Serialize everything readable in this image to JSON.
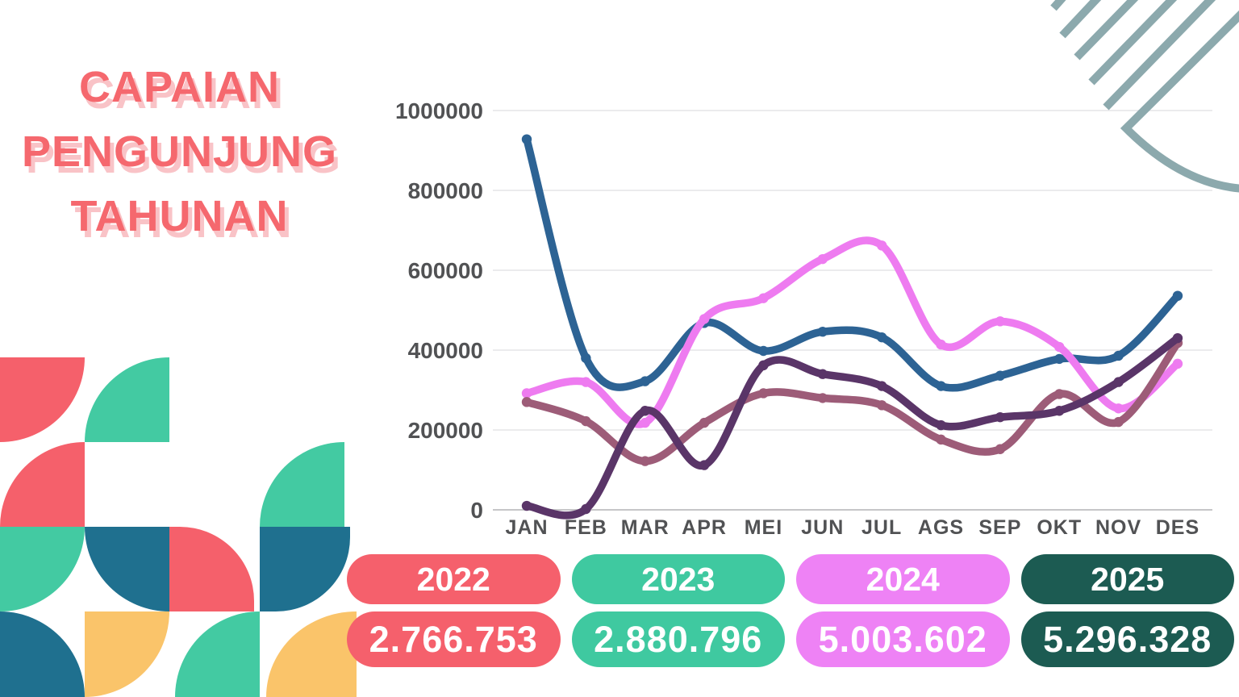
{
  "title": {
    "lines": [
      "CAPAIAN",
      "PENGUNJUNG",
      "TAHUNAN"
    ]
  },
  "chart_data": {
    "type": "line",
    "title": "Capaian Pengunjung Tahunan",
    "categories": [
      "JAN",
      "FEB",
      "MAR",
      "APR",
      "MEI",
      "JUN",
      "JUL",
      "AGS",
      "SEP",
      "OKT",
      "NOV",
      "DES"
    ],
    "series": [
      {
        "name": "2022",
        "color": "#5A3568",
        "values": [
          10000,
          2000,
          248000,
          112000,
          362000,
          340000,
          310000,
          212000,
          232000,
          248000,
          320000,
          430000
        ]
      },
      {
        "name": "2023",
        "color": "#9D5C78",
        "values": [
          270000,
          222000,
          122000,
          218000,
          292000,
          280000,
          262000,
          176000,
          152000,
          290000,
          220000,
          418000
        ]
      },
      {
        "name": "2024",
        "color": "#EE7BF0",
        "values": [
          292000,
          320000,
          218000,
          478000,
          530000,
          628000,
          662000,
          414000,
          472000,
          408000,
          254000,
          366000
        ]
      },
      {
        "name": "2025",
        "color": "#2D6394",
        "values": [
          928000,
          380000,
          322000,
          468000,
          398000,
          446000,
          432000,
          310000,
          336000,
          378000,
          386000,
          536000
        ]
      }
    ],
    "y_ticks": [
      1000000,
      800000,
      600000,
      400000,
      200000,
      0
    ],
    "ylim": [
      0,
      1000000
    ],
    "xlabel": "",
    "ylabel": "",
    "grid": "horizontal",
    "legend_position": "none"
  },
  "totals": [
    {
      "year": "2022",
      "total": "2.766.753",
      "color": "#F5606C"
    },
    {
      "year": "2023",
      "total": "2.880.796",
      "color": "#3FC9A0"
    },
    {
      "year": "2024",
      "total": "5.003.602",
      "color": "#EE82F5"
    },
    {
      "year": "2025",
      "total": "5.296.328",
      "color": "#1C5B52"
    }
  ],
  "colors": {
    "title_coral": "#F5686E",
    "title_shadow": "#F9C3C7",
    "axis_text": "#515254",
    "gridline": "#EBEBED",
    "gridline_zero": "#C6C6C8",
    "pattern_coral": "#F5606B",
    "pattern_teal": "#43CAA2",
    "pattern_blue": "#1F708F",
    "pattern_yellow": "#FAC46A",
    "decor_slate": "#8CA9AD"
  }
}
